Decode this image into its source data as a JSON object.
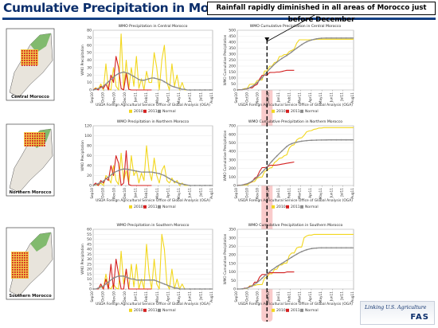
{
  "page": {
    "title": "Cumulative Precipitation in Morocco",
    "callout": "Rainfall rapidly diminished in all areas of Morocco just before December",
    "footer_line1": "Linking U.S. Agriculture",
    "footer_line2": "FAS"
  },
  "colors": {
    "y2010": "#f2d71f",
    "y2011": "#d42020",
    "normal": "#8a8a8a",
    "highlight": "#f4a0a0"
  },
  "months": [
    "Sep10",
    "Oct10",
    "Nov10",
    "Dec10",
    "Jan11",
    "Feb11",
    "Mar11",
    "Apr11",
    "May11",
    "Jun11",
    "Jul11",
    "Aug11"
  ],
  "source": "USDA Foreign Agricultural Service Office of Global Analysis (OGA)",
  "rows": [
    {
      "map_label": "Central Morocco",
      "precip": {
        "type": "line",
        "title": "WMO Precipitation in Central Morocco",
        "ylabel": "WMO Precipitation",
        "ylim": [
          0,
          80
        ],
        "yticks": [
          0,
          10,
          20,
          30,
          40,
          50,
          60,
          70,
          80
        ],
        "series": [
          {
            "name": "2010",
            "values": [
              0,
              3,
              1,
              8,
              0,
              35,
              2,
              0,
              30,
              5,
              0,
              75,
              0,
              40,
              1,
              30,
              5,
              45,
              2,
              15,
              0,
              25,
              10,
              10,
              50,
              30,
              0,
              40,
              60,
              10,
              0,
              35,
              5,
              20,
              0,
              10,
              0,
              0,
              0,
              0,
              0,
              0,
              0,
              0,
              0,
              0,
              0,
              0
            ]
          },
          {
            "name": "2011",
            "values": [
              0,
              2,
              0,
              5,
              2,
              8,
              0,
              20,
              10,
              45,
              30,
              2,
              0,
              22,
              1,
              0,
              0,
              0,
              0,
              0,
              0,
              0,
              0,
              0
            ]
          },
          {
            "name": "Normal",
            "values": [
              0,
              1,
              2,
              3,
              5,
              8,
              11,
              14,
              17,
              20,
              22,
              23,
              24,
              23,
              22,
              20,
              18,
              16,
              14,
              13,
              13,
              14,
              15,
              16,
              16,
              15,
              14,
              13,
              11,
              9,
              7,
              5,
              4,
              3,
              2,
              1,
              1,
              0,
              0,
              0,
              0,
              0,
              0,
              0,
              0,
              0,
              0,
              0
            ]
          }
        ]
      },
      "cumulative": {
        "type": "line",
        "title": "WMO Cumulative Precipitation in Central Morocco",
        "ylabel": "WMO Cumulative Precipitation",
        "ylim": [
          0,
          500
        ],
        "yticks": [
          0,
          50,
          100,
          150,
          200,
          250,
          300,
          350,
          400,
          450,
          500
        ],
        "series": [
          {
            "name": "2010",
            "values": [
              0,
              3,
              4,
              12,
              12,
              47,
              49,
              49,
              79,
              84,
              84,
              159,
              159,
              199,
              200,
              230,
              235,
              280,
              282,
              297,
              297,
              322,
              332,
              342,
              392,
              420,
              420,
              420,
              420,
              420,
              420,
              420,
              425,
              425,
              425,
              425,
              425,
              425,
              425,
              425,
              425,
              425,
              425,
              425,
              425,
              425,
              425,
              425
            ]
          },
          {
            "name": "2011",
            "values": [
              0,
              2,
              2,
              7,
              9,
              17,
              17,
              37,
              47,
              92,
              122,
              124,
              124,
              146,
              147,
              147,
              150,
              150,
              155,
              160,
              165,
              165,
              165,
              165
            ]
          },
          {
            "name": "Normal",
            "values": [
              0,
              1,
              3,
              6,
              11,
              19,
              30,
              44,
              61,
              81,
              103,
              126,
              150,
              173,
              195,
              215,
              233,
              249,
              263,
              276,
              289,
              303,
              318,
              334,
              350,
              365,
              379,
              392,
              403,
              412,
              419,
              424,
              428,
              431,
              433,
              434,
              435,
              435,
              435,
              435,
              435,
              435,
              435,
              435,
              435,
              435,
              435,
              435
            ]
          }
        ]
      }
    },
    {
      "map_label": "Northern Morocco",
      "precip": {
        "type": "line",
        "title": "WMO Precipitation in Northern Morocco",
        "ylabel": "WMO Precipitation",
        "ylim": [
          0,
          120
        ],
        "yticks": [
          0,
          20,
          40,
          60,
          80,
          100,
          120
        ],
        "series": [
          {
            "name": "2010",
            "values": [
              0,
              2,
              0,
              5,
              0,
              20,
              15,
              5,
              40,
              10,
              2,
              65,
              10,
              30,
              5,
              60,
              20,
              30,
              5,
              25,
              10,
              80,
              30,
              10,
              55,
              20,
              5,
              30,
              40,
              10,
              5,
              15,
              5,
              10,
              0,
              5,
              0,
              0,
              0,
              0,
              0,
              0,
              0,
              0,
              0,
              0,
              0,
              0
            ]
          },
          {
            "name": "2011",
            "values": [
              0,
              5,
              0,
              10,
              5,
              15,
              10,
              40,
              20,
              60,
              45,
              0,
              5,
              70,
              2,
              0,
              0,
              0,
              0,
              0,
              0,
              0,
              0,
              0
            ]
          },
          {
            "name": "Normal",
            "values": [
              0,
              2,
              4,
              6,
              9,
              13,
              17,
              21,
              25,
              28,
              30,
              32,
              33,
              33,
              32,
              31,
              30,
              29,
              28,
              27,
              27,
              27,
              27,
              27,
              26,
              25,
              24,
              22,
              20,
              17,
              14,
              11,
              8,
              6,
              4,
              3,
              2,
              1,
              0,
              0,
              0,
              0,
              0,
              0,
              0,
              0,
              0,
              0
            ]
          }
        ]
      },
      "cumulative": {
        "type": "line",
        "title": "WMO Cumulative Precipitation in Northern Morocco",
        "ylabel": "WMO Cumulative Precipitation",
        "ylim": [
          0,
          700
        ],
        "yticks": [
          0,
          100,
          200,
          300,
          400,
          500,
          600,
          700
        ],
        "series": [
          {
            "name": "2010",
            "values": [
              0,
              2,
              2,
              7,
              7,
              27,
              42,
              47,
              87,
              97,
              99,
              164,
              174,
              204,
              209,
              269,
              289,
              319,
              324,
              349,
              359,
              439,
              469,
              479,
              534,
              554,
              559,
              589,
              629,
              639,
              644,
              659,
              664,
              674,
              674,
              679,
              679,
              679,
              679,
              679,
              679,
              679,
              679,
              679,
              679,
              679,
              679,
              679
            ]
          },
          {
            "name": "2011",
            "values": [
              0,
              5,
              5,
              15,
              20,
              35,
              45,
              85,
              105,
              165,
              210,
              210,
              215,
              235,
              237,
              237,
              240,
              245,
              250,
              255,
              260,
              265,
              270,
              275
            ]
          },
          {
            "name": "Normal",
            "values": [
              0,
              2,
              6,
              12,
              21,
              34,
              51,
              72,
              97,
              125,
              155,
              187,
              220,
              253,
              285,
              316,
              346,
              375,
              403,
              430,
              457,
              478,
              490,
              500,
              508,
              514,
              519,
              523,
              526,
              528,
              530,
              531,
              532,
              533,
              533,
              534,
              534,
              535,
              535,
              535,
              535,
              535,
              535,
              535,
              535,
              535,
              535,
              535
            ]
          }
        ]
      }
    },
    {
      "map_label": "Southern Morocco",
      "precip": {
        "type": "line",
        "title": "WMO Precipitation in Southern Morocco",
        "ylabel": "WMO Precipitation",
        "ylim": [
          0,
          60
        ],
        "yticks": [
          0,
          5,
          10,
          15,
          20,
          25,
          30,
          35,
          40,
          45,
          50,
          55,
          60
        ],
        "series": [
          {
            "name": "2010",
            "values": [
              0,
              0,
              0,
              3,
              0,
              15,
              2,
              0,
              5,
              1,
              0,
              38,
              5,
              20,
              0,
              25,
              2,
              25,
              0,
              10,
              0,
              45,
              15,
              0,
              30,
              5,
              0,
              55,
              40,
              5,
              0,
              20,
              0,
              10,
              0,
              5,
              0,
              0,
              0,
              0,
              0,
              0,
              0,
              0,
              0,
              0,
              0,
              0
            ]
          },
          {
            "name": "2011",
            "values": [
              0,
              0,
              0,
              5,
              0,
              10,
              0,
              25,
              0,
              30,
              15,
              0,
              0,
              20,
              0,
              0,
              0,
              0,
              0,
              0,
              0,
              0,
              0,
              0
            ]
          },
          {
            "name": "Normal",
            "values": [
              0,
              0,
              1,
              2,
              3,
              5,
              7,
              9,
              11,
              12,
              13,
              13,
              13,
              12,
              11,
              10,
              10,
              9,
              9,
              9,
              9,
              9,
              9,
              9,
              9,
              8,
              7,
              6,
              5,
              4,
              3,
              2,
              1,
              1,
              0,
              0,
              0,
              0,
              0,
              0,
              0,
              0,
              0,
              0,
              0,
              0,
              0,
              0
            ]
          }
        ]
      },
      "cumulative": {
        "type": "line",
        "title": "WMO Cumulative Precipitation in Southern Morocco",
        "ylabel": "WMO Cumulative Precipitation",
        "ylim": [
          0,
          350
        ],
        "yticks": [
          0,
          50,
          100,
          150,
          200,
          250,
          300,
          350
        ],
        "series": [
          {
            "name": "2010",
            "values": [
              0,
              0,
              0,
              3,
              3,
              18,
              20,
              20,
              25,
              26,
              26,
              64,
              69,
              89,
              89,
              114,
              116,
              141,
              141,
              151,
              151,
              196,
              211,
              211,
              241,
              246,
              246,
              301,
              311,
              316,
              316,
              320,
              320,
              320,
              320,
              320,
              320,
              320,
              320,
              320,
              320,
              320,
              320,
              320,
              320,
              320,
              320,
              320
            ]
          },
          {
            "name": "2011",
            "values": [
              0,
              0,
              0,
              5,
              5,
              15,
              15,
              40,
              40,
              70,
              85,
              85,
              85,
              95,
              95,
              95,
              95,
              95,
              95,
              95,
              100,
              100,
              100,
              100
            ]
          },
          {
            "name": "Normal",
            "values": [
              0,
              0,
              1,
              3,
              6,
              11,
              18,
              27,
              38,
              50,
              63,
              76,
              89,
              101,
              112,
              122,
              132,
              141,
              150,
              159,
              168,
              177,
              186,
              195,
              204,
              212,
              219,
              225,
              230,
              234,
              237,
              239,
              240,
              241,
              241,
              241,
              241,
              241,
              241,
              241,
              241,
              241,
              241,
              241,
              241,
              241,
              241,
              241
            ]
          }
        ]
      }
    }
  ],
  "chart_data": [
    {
      "type": "line",
      "title": "WMO Precipitation in Central Morocco",
      "ref": "rows.0.precip"
    },
    {
      "type": "line",
      "title": "WMO Cumulative Precipitation in Central Morocco",
      "ref": "rows.0.cumulative"
    },
    {
      "type": "line",
      "title": "WMO Precipitation in Northern Morocco",
      "ref": "rows.1.precip"
    },
    {
      "type": "line",
      "title": "WMO Cumulative Precipitation in Northern Morocco",
      "ref": "rows.1.cumulative"
    },
    {
      "type": "line",
      "title": "WMO Precipitation in Southern Morocco",
      "ref": "rows.2.precip"
    },
    {
      "type": "line",
      "title": "WMO Cumulative Precipitation in Southern Morocco",
      "ref": "rows.2.cumulative"
    }
  ]
}
